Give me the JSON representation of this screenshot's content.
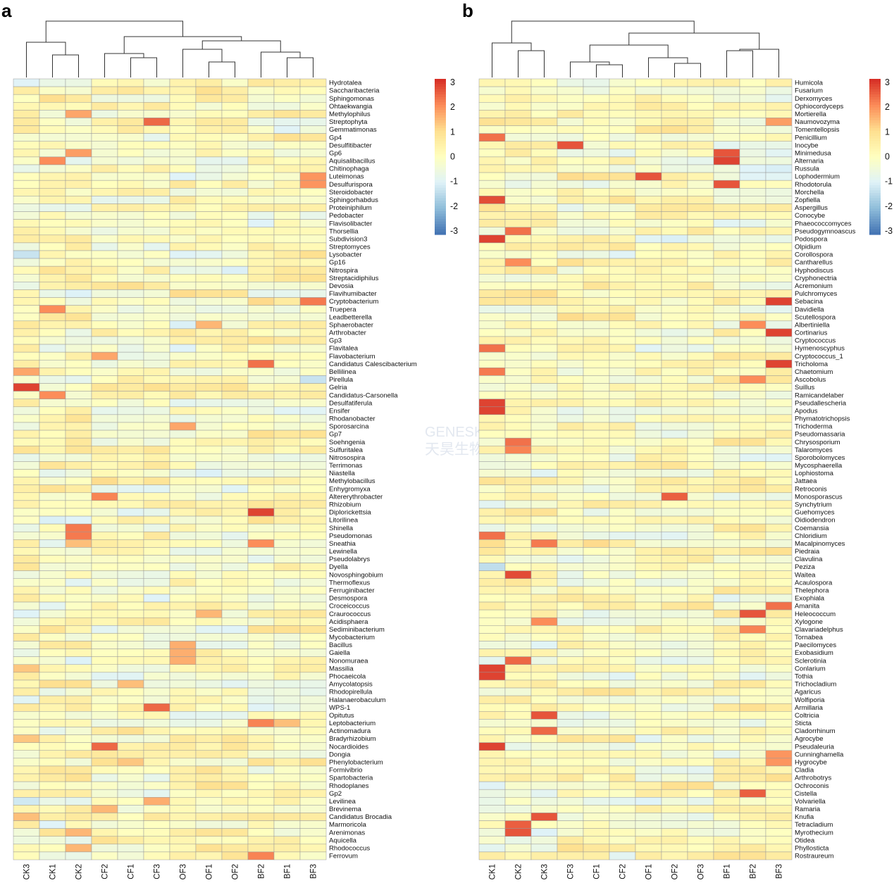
{
  "chart_data": [
    {
      "type": "heatmap",
      "panel_label": "a",
      "columns": [
        "CK3",
        "CK1",
        "CK2",
        "CF2",
        "CF1",
        "CF3",
        "OF3",
        "OF1",
        "OF2",
        "BF2",
        "BF1",
        "BF3"
      ],
      "rows": [
        "Hydrotalea",
        "Saccharibacteria",
        "Sphingomonas",
        "Ohtaekwangia",
        "Methylophilus",
        "Streptophyta",
        "Gemmatimonas",
        "Gp4",
        "Desulfitibacter",
        "Gp6",
        "Aquisalibacillus",
        "Chitinophaga",
        "Luteimonas",
        "Desulfurispora",
        "Steroidobacter",
        "Sphingorhabdus",
        "Proteiniphilum",
        "Pedobacter",
        "Flavisolibacter",
        "Thorsellia",
        "Subdivision3",
        "Streptomyces",
        "Lysobacter",
        "Gp16",
        "Nitrospira",
        "Streptacidiphilus",
        "Devosia",
        "Flavihumibacter",
        "Cryptobacterium",
        "Truepera",
        "Leadbetterella",
        "Sphaerobacter",
        "Arthrobacter",
        "Gp3",
        "Flavitalea",
        "Flavobacterium",
        "Candidatus Calescibacterium",
        "Bellilinea",
        "Pirellula",
        "Gelria",
        "Candidatus-Carsonella",
        "Desulfatiferula",
        "Ensifer",
        "Rhodanobacter",
        "Sporosarcina",
        "Gp7",
        "Soehngenia",
        "Sulfuritalea",
        "Nitrosospira",
        "Terrimonas",
        "Niastella",
        "Methylobacillus",
        "Enhygromyxa",
        "Altererythrobacter",
        "Rhizobium",
        "Diplorickettsia",
        "Litorilinea",
        "Shinella",
        "Pseudomonas",
        "Sneathia",
        "Lewinella",
        "Pseudolabrys",
        "Dyella",
        "Novosphingobium",
        "Thermoflexus",
        "Ferruginibacter",
        "Desmospora",
        "Croceicoccus",
        "Craurococcus",
        "Acidisphaera",
        "Sediminibacterium",
        "Mycobacterium",
        "Bacillus",
        "Gaiella",
        "Nonomuraea",
        "Massilia",
        "Phocaeicola",
        "Amycolatopsis",
        "Rhodopirellula",
        "Halanaerobaculum",
        "WPS-1",
        "Opitutus",
        "Leptobacterium",
        "Actinomadura",
        "Bradyrhizobium",
        "Nocardioides",
        "Dongia",
        "Phenylobacterium",
        "Formivibrio",
        "Spartobacteria",
        "Rhodoplanes",
        "Gp2",
        "Levilinea",
        "Brevinema",
        "Candidatus Brocadia",
        "Marmoricola",
        "Arenimonas",
        "Aquicella",
        "Rhodococcus",
        "Ferrovum"
      ],
      "highlights": [
        {
          "row": "Gelria",
          "col": "CK3",
          "value": 2.8
        },
        {
          "row": "Diplorickettsia",
          "col": "BF2",
          "value": 2.8
        },
        {
          "row": "Streptophyta",
          "col": "CF3",
          "value": 2.4
        },
        {
          "row": "WPS-1",
          "col": "CF3",
          "value": 2.4
        },
        {
          "row": "Nocardioides",
          "col": "CF2",
          "value": 2.4
        },
        {
          "row": "Candidatus Calescibacterium",
          "col": "BF2",
          "value": 2.3
        },
        {
          "row": "Cryptobacterium",
          "col": "BF3",
          "value": 2.2
        },
        {
          "row": "Shinella",
          "col": "CK2",
          "value": 2.2
        },
        {
          "row": "Pseudomonas",
          "col": "CK2",
          "value": 2.2
        },
        {
          "row": "Altererythrobacter",
          "col": "CF2",
          "value": 2.1
        },
        {
          "row": "Leptobacterium",
          "col": "BF2",
          "value": 2.1
        },
        {
          "row": "Ferrovum",
          "col": "BF2",
          "value": 2.1
        },
        {
          "row": "Aquisalibacillus",
          "col": "CK1",
          "value": 2.0
        },
        {
          "row": "Truepera",
          "col": "CK1",
          "value": 2.0
        },
        {
          "row": "Candidatus-Carsonella",
          "col": "CK1",
          "value": 2.0
        },
        {
          "row": "Sneathia",
          "col": "BF2",
          "value": 2.0
        },
        {
          "row": "Desulfurispora",
          "col": "BF3",
          "value": 1.9
        },
        {
          "row": "Luteimonas",
          "col": "BF3",
          "value": 1.9
        },
        {
          "row": "Gp6",
          "col": "CK2",
          "value": 1.8
        },
        {
          "row": "Methylophilus",
          "col": "CK2",
          "value": 1.7
        },
        {
          "row": "Flavobacterium",
          "col": "CF2",
          "value": 1.7
        },
        {
          "row": "Bellilinea",
          "col": "CK3",
          "value": 1.7
        },
        {
          "row": "Sporosarcina",
          "col": "OF3",
          "value": 1.7
        },
        {
          "row": "Bacillus",
          "col": "OF3",
          "value": 1.6
        },
        {
          "row": "Gaiella",
          "col": "OF3",
          "value": 1.6
        },
        {
          "row": "Nonomuraea",
          "col": "OF3",
          "value": 1.6
        },
        {
          "row": "Levilinea",
          "col": "CF3",
          "value": 1.6
        },
        {
          "row": "Craurococcus",
          "col": "OF1",
          "value": 1.5
        },
        {
          "row": "Brevinema",
          "col": "CF2",
          "value": 1.5
        },
        {
          "row": "Arenimonas",
          "col": "CK2",
          "value": 1.5
        },
        {
          "row": "Rhodococcus",
          "col": "CK2",
          "value": 1.5
        },
        {
          "row": "Sphaerobacter",
          "col": "OF1",
          "value": 1.5
        },
        {
          "row": "Sneathia",
          "col": "CK2",
          "value": 1.4
        },
        {
          "row": "Candidatus Brocadia",
          "col": "CK3",
          "value": 1.4
        },
        {
          "row": "Leptobacterium",
          "col": "BF1",
          "value": 1.4
        },
        {
          "row": "Amycolatopsis",
          "col": "CF1",
          "value": 1.4
        },
        {
          "row": "Massilia",
          "col": "CK3",
          "value": 1.3
        },
        {
          "row": "Bradyrhizobium",
          "col": "CK3",
          "value": 1.3
        },
        {
          "row": "Phenylobacterium",
          "col": "CF1",
          "value": 1.3
        },
        {
          "row": "Flavisolibacter",
          "col": "BF2",
          "value": -1.0
        },
        {
          "row": "Pirellula",
          "col": "BF3",
          "value": -1.3
        },
        {
          "row": "Flavitalea",
          "col": "OF3",
          "value": -1.0
        },
        {
          "row": "Desmospora",
          "col": "CF3",
          "value": -1.0
        },
        {
          "row": "Levilinea",
          "col": "CK3",
          "value": -1.2
        },
        {
          "row": "Lysobacter",
          "col": "CK3",
          "value": -1.3
        },
        {
          "row": "Luteimonas",
          "col": "OF3",
          "value": -1.0
        },
        {
          "row": "Marmoricola",
          "col": "CK1",
          "value": -1.0
        }
      ],
      "column_groups": [
        [
          "CK3"
        ],
        [
          "CK1",
          "CK2"
        ],
        [
          "CF2",
          "CF1",
          "CF3"
        ],
        [
          "OF3",
          "OF1",
          "OF2"
        ],
        [
          "BF2",
          "BF1",
          "BF3"
        ]
      ],
      "title": "",
      "xlabel": "",
      "ylabel": ""
    },
    {
      "type": "heatmap",
      "panel_label": "b",
      "columns": [
        "CK1",
        "CK2",
        "CK3",
        "CF3",
        "CF1",
        "CF2",
        "OF1",
        "OF2",
        "OF3",
        "BF1",
        "BF2",
        "BF3"
      ],
      "rows": [
        "Humicola",
        "Fusarium",
        "Derxomyces",
        "Ophiocordyceps",
        "Mortierella",
        "Naumovozyma",
        "Tomentellopsis",
        "Penicillium",
        "Inocybe",
        "Minimedusa",
        "Alternaria",
        "Russula",
        "Lophodermium",
        "Rhodotorula",
        "Morchella",
        "Zopfiella",
        "Aspergillus",
        "Conocybe",
        "Phaeococcomyces",
        "Pseudogymnoascus",
        "Podospora",
        "Olpidium",
        "Corollospora",
        "Cantharellus",
        "Hyphodiscus",
        "Cryphonectria",
        "Acremonium",
        "Pulchromyces",
        "Sebacina",
        "Davidiella",
        "Scutellospora",
        "Albertiniella",
        "Cortinarius",
        "Cryptococcus",
        "Hymenoscyphus",
        "Cryptococcus_1",
        "Tricholoma",
        "Chaetomium",
        "Ascobolus",
        "Suillus",
        "Ramicandelaber",
        "Pseudallescheria",
        "Apodus",
        "Phymatotrichopsis",
        "Trichoderma",
        "Pseudomassaria",
        "Chrysosporium",
        "Talaromyces",
        "Sporobolomyces",
        "Mycosphaerella",
        "Lophiostoma",
        "Jattaea",
        "Retroconis",
        "Monosporascus",
        "Synchytrium",
        "Guehomyces",
        "Oidiodendron",
        "Coemansia",
        "Chloridium",
        "Macalpinomyces",
        "Piedraia",
        "Clavulina",
        "Peziza",
        "Waitea",
        "Acaulospora",
        "Thelephora",
        "Exophiala",
        "Amanita",
        "Heleococcum",
        "Xylogone",
        "Clavariadelphus",
        "Tornabea",
        "Paecilomyces",
        "Exobasidium",
        "Sclerotinia",
        "Conlarium",
        "Tothia",
        "Trichocladium",
        "Agaricus",
        "Wolfiporia",
        "Armillaria",
        "Coltricia",
        "Sticta",
        "Cladorrhinum",
        "Agrocybe",
        "Pseudaleuria",
        "Cunninghamella",
        "Hygrocybe",
        "Cladia",
        "Arthrobotrys",
        "Ochroconis",
        "Cistella",
        "Volvariella",
        "Ramaria",
        "Knufia",
        "Tetracladium",
        "Myrothecium",
        "Otidea",
        "Phyllosticta",
        "Rostraureum"
      ],
      "highlights": [
        {
          "row": "Pseudallescheria",
          "col": "CK1",
          "value": 2.8
        },
        {
          "row": "Apodus",
          "col": "CK1",
          "value": 2.8
        },
        {
          "row": "Podospora",
          "col": "CK1",
          "value": 2.8
        },
        {
          "row": "Conlarium",
          "col": "CK1",
          "value": 2.8
        },
        {
          "row": "Tothia",
          "col": "CK1",
          "value": 2.8
        },
        {
          "row": "Pseudaleuria",
          "col": "CK1",
          "value": 2.8
        },
        {
          "row": "Zopfiella",
          "col": "CK1",
          "value": 2.7
        },
        {
          "row": "Waitea",
          "col": "CK2",
          "value": 2.7
        },
        {
          "row": "Tetracladium",
          "col": "CK2",
          "value": 2.5
        },
        {
          "row": "Knufia",
          "col": "CK3",
          "value": 2.6
        },
        {
          "row": "Coltricia",
          "col": "CK3",
          "value": 2.6
        },
        {
          "row": "Cladorrhinum",
          "col": "CK3",
          "value": 2.4
        },
        {
          "row": "Sebacina",
          "col": "BF3",
          "value": 2.8
        },
        {
          "row": "Cortinarius",
          "col": "BF3",
          "value": 2.8
        },
        {
          "row": "Tricholoma",
          "col": "BF3",
          "value": 2.8
        },
        {
          "row": "Alternaria",
          "col": "BF1",
          "value": 2.8
        },
        {
          "row": "Minimedusa",
          "col": "BF1",
          "value": 2.6
        },
        {
          "row": "Rhodotorula",
          "col": "BF1",
          "value": 2.6
        },
        {
          "row": "Inocybe",
          "col": "CF3",
          "value": 2.6
        },
        {
          "row": "Lophodermium",
          "col": "OF1",
          "value": 2.6
        },
        {
          "row": "Monosporascus",
          "col": "OF2",
          "value": 2.5
        },
        {
          "row": "Heleococcum",
          "col": "BF2",
          "value": 2.6
        },
        {
          "row": "Cistella",
          "col": "BF2",
          "value": 2.5
        },
        {
          "row": "Amanita",
          "col": "BF3",
          "value": 2.3
        },
        {
          "row": "Penicillium",
          "col": "CK1",
          "value": 2.3
        },
        {
          "row": "Hymenoscyphus",
          "col": "CK1",
          "value": 2.3
        },
        {
          "row": "Pseudogymnoascus",
          "col": "CK2",
          "value": 2.3
        },
        {
          "row": "Chaetomium",
          "col": "CK1",
          "value": 2.2
        },
        {
          "row": "Chloridium",
          "col": "CK1",
          "value": 2.3
        },
        {
          "row": "Sclerotinia",
          "col": "CK2",
          "value": 2.4
        },
        {
          "row": "Chrysosporium",
          "col": "CK2",
          "value": 2.3
        },
        {
          "row": "Talaromyces",
          "col": "CK2",
          "value": 2.1
        },
        {
          "row": "Macalpinomyces",
          "col": "CK3",
          "value": 2.2
        },
        {
          "row": "Xylogone",
          "col": "CK3",
          "value": 2.0
        },
        {
          "row": "Clavariadelphus",
          "col": "BF2",
          "value": 2.1
        },
        {
          "row": "Ascobolus",
          "col": "BF2",
          "value": 2.0
        },
        {
          "row": "Albertiniella",
          "col": "BF2",
          "value": 2.0
        },
        {
          "row": "Cantharellus",
          "col": "CK2",
          "value": 2.0
        },
        {
          "row": "Cunninghamella",
          "col": "BF3",
          "value": 1.9
        },
        {
          "row": "Hygrocybe",
          "col": "BF3",
          "value": 1.9
        },
        {
          "row": "Naumovozyma",
          "col": "BF3",
          "value": 1.8
        },
        {
          "row": "Myrothecium",
          "col": "CK2",
          "value": 2.6
        },
        {
          "row": "Peziza",
          "col": "CK1",
          "value": -1.4
        },
        {
          "row": "Synchytrium",
          "col": "CK1",
          "value": -0.9
        },
        {
          "row": "Rostraureum",
          "col": "CF2",
          "value": -0.9
        }
      ],
      "column_groups": [
        [
          "CK1",
          "CK2",
          "CK3"
        ],
        [
          "CF3",
          "CF1",
          "CF2"
        ],
        [
          "OF1",
          "OF2",
          "OF3"
        ],
        [
          "BF1",
          "BF2",
          "BF3"
        ]
      ],
      "title": "",
      "xlabel": "",
      "ylabel": ""
    }
  ],
  "legend": {
    "ticks": [
      "3",
      "2",
      "1",
      "0",
      "-1",
      "-2",
      "-3"
    ],
    "range": [
      -3,
      3
    ],
    "colors": {
      "low": "#4575b4",
      "mid": "#ffffbf",
      "high": "#d73027"
    }
  },
  "watermark": {
    "line1": "GENESKY",
    "line2": "天昊生物"
  }
}
